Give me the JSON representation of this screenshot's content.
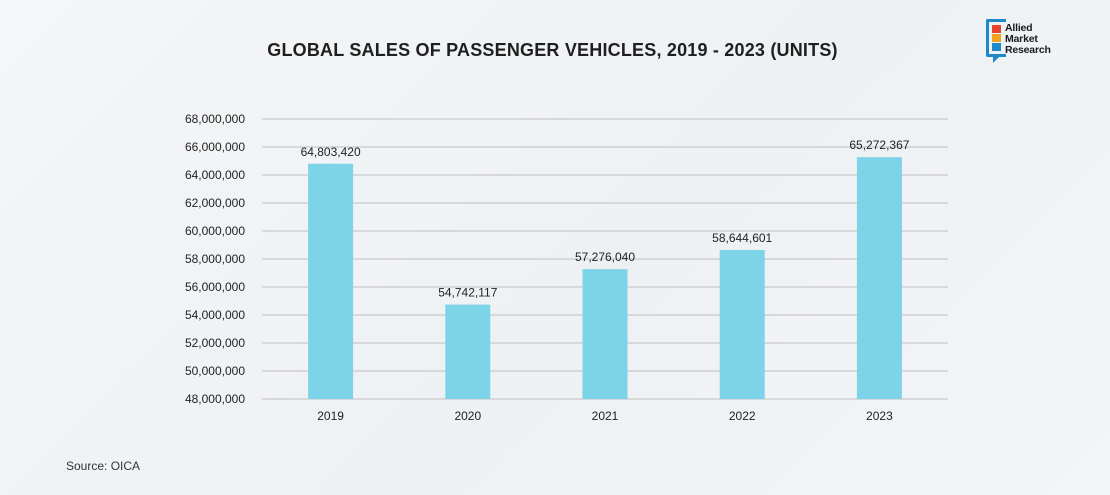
{
  "logo": {
    "line1": "Allied",
    "line2": "Market",
    "line3": "Research",
    "colors": [
      "#e8432e",
      "#f2a31b",
      "#1e88c8"
    ]
  },
  "source": "Source: OICA",
  "chart_data": {
    "type": "bar",
    "title": "GLOBAL SALES OF PASSENGER VEHICLES, 2019 - 2023 (UNITS)",
    "xlabel": "",
    "ylabel": "",
    "categories": [
      "2019",
      "2020",
      "2021",
      "2022",
      "2023"
    ],
    "values": [
      64803420,
      54742117,
      57276040,
      58644601,
      65272367
    ],
    "value_labels": [
      "64,803,420",
      "54,742,117",
      "57,276,040",
      "58,644,601",
      "65,272,367"
    ],
    "ylim": [
      48000000,
      68000000
    ],
    "yticks": [
      48000000,
      50000000,
      52000000,
      54000000,
      56000000,
      58000000,
      60000000,
      62000000,
      64000000,
      66000000,
      68000000
    ],
    "ytick_labels": [
      "48,000,000",
      "50,000,000",
      "52,000,000",
      "54,000,000",
      "56,000,000",
      "58,000,000",
      "60,000,000",
      "62,000,000",
      "64,000,000",
      "66,000,000",
      "68,000,000"
    ],
    "grid": true,
    "bar_color": "#7dd3e8",
    "grid_color": "#c9c9c9"
  }
}
